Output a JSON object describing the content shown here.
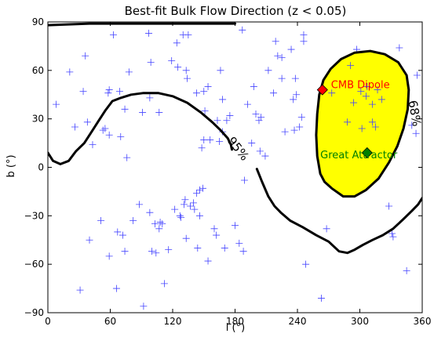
{
  "chart_data": {
    "type": "scatter",
    "title": "Best-fit Bulk Flow Direction (z < 0.05)",
    "xlabel": "l (°)",
    "ylabel": "b (°)",
    "xlim": [
      0,
      360
    ],
    "ylim": [
      -90,
      90
    ],
    "xticks": [
      0,
      60,
      120,
      180,
      240,
      300,
      360
    ],
    "yticks": [
      -90,
      -60,
      -30,
      0,
      30,
      60,
      90
    ],
    "grid": false,
    "scatter_color": "#4444ff",
    "contour_color": "#000000",
    "fill_color": "#ffff00",
    "points": [
      [
        8,
        39
      ],
      [
        21,
        59
      ],
      [
        26,
        25
      ],
      [
        31,
        -76
      ],
      [
        34,
        47
      ],
      [
        36,
        69
      ],
      [
        38,
        28
      ],
      [
        40,
        -45
      ],
      [
        43,
        14
      ],
      [
        51,
        -33
      ],
      [
        53,
        23
      ],
      [
        55,
        24
      ],
      [
        59,
        48
      ],
      [
        58,
        46
      ],
      [
        59,
        20
      ],
      [
        59,
        -55
      ],
      [
        63,
        82
      ],
      [
        66,
        -75
      ],
      [
        67,
        -40
      ],
      [
        69,
        47
      ],
      [
        70,
        19
      ],
      [
        72,
        -42
      ],
      [
        74,
        36
      ],
      [
        74,
        -52
      ],
      [
        76,
        6
      ],
      [
        78,
        59
      ],
      [
        82,
        -33
      ],
      [
        88,
        -23
      ],
      [
        91,
        34
      ],
      [
        92,
        -86
      ],
      [
        97,
        83
      ],
      [
        98,
        -28
      ],
      [
        98,
        43
      ],
      [
        99,
        65
      ],
      [
        100,
        -52
      ],
      [
        103,
        -35
      ],
      [
        104,
        -53
      ],
      [
        107,
        -38
      ],
      [
        108,
        -34
      ],
      [
        107,
        34
      ],
      [
        110,
        -35
      ],
      [
        112,
        -72
      ],
      [
        116,
        -51
      ],
      [
        119,
        66
      ],
      [
        122,
        -26
      ],
      [
        124,
        77
      ],
      [
        125,
        62
      ],
      [
        127,
        -30
      ],
      [
        128,
        -31
      ],
      [
        130,
        82
      ],
      [
        131,
        -23
      ],
      [
        132,
        -20
      ],
      [
        133,
        -44
      ],
      [
        133,
        60
      ],
      [
        134,
        55
      ],
      [
        135,
        82
      ],
      [
        137,
        -24
      ],
      [
        140,
        -22
      ],
      [
        141,
        -26
      ],
      [
        143,
        -16
      ],
      [
        144,
        -50
      ],
      [
        143,
        46
      ],
      [
        146,
        -14
      ],
      [
        146,
        -30
      ],
      [
        148,
        12
      ],
      [
        149,
        -13
      ],
      [
        150,
        17
      ],
      [
        150,
        47
      ],
      [
        151,
        35
      ],
      [
        154,
        50
      ],
      [
        154,
        -58
      ],
      [
        156,
        17
      ],
      [
        160,
        -38
      ],
      [
        162,
        -42
      ],
      [
        163,
        29
      ],
      [
        165,
        16
      ],
      [
        166,
        60
      ],
      [
        168,
        42
      ],
      [
        168,
        22
      ],
      [
        170,
        -50
      ],
      [
        172,
        29
      ],
      [
        175,
        32
      ],
      [
        180,
        -36
      ],
      [
        184,
        -47
      ],
      [
        187,
        85
      ],
      [
        188,
        -52
      ],
      [
        189,
        -8
      ],
      [
        192,
        39
      ],
      [
        196,
        15
      ],
      [
        198,
        50
      ],
      [
        200,
        33
      ],
      [
        203,
        29
      ],
      [
        205,
        31
      ],
      [
        204,
        10
      ],
      [
        209,
        7
      ],
      [
        212,
        60
      ],
      [
        217,
        46
      ],
      [
        219,
        78
      ],
      [
        221,
        69
      ],
      [
        225,
        55
      ],
      [
        225,
        68
      ],
      [
        228,
        22
      ],
      [
        234,
        73
      ],
      [
        236,
        42
      ],
      [
        237,
        23
      ],
      [
        238,
        55
      ],
      [
        239,
        45
      ],
      [
        242,
        25
      ],
      [
        244,
        31
      ],
      [
        246,
        78
      ],
      [
        246,
        82
      ],
      [
        248,
        -60
      ],
      [
        263,
        -81
      ],
      [
        268,
        -38
      ],
      [
        273,
        46
      ],
      [
        288,
        28
      ],
      [
        291,
        63
      ],
      [
        294,
        40
      ],
      [
        297,
        73
      ],
      [
        301,
        47
      ],
      [
        302,
        24
      ],
      [
        306,
        44
      ],
      [
        307,
        50
      ],
      [
        312,
        28
      ],
      [
        312,
        39
      ],
      [
        315,
        25
      ],
      [
        317,
        48
      ],
      [
        321,
        42
      ],
      [
        328,
        -24
      ],
      [
        331,
        -41
      ],
      [
        332,
        -43
      ],
      [
        338,
        74
      ],
      [
        345,
        -64
      ],
      [
        350,
        26
      ],
      [
        354,
        21
      ],
      [
        355,
        57
      ]
    ],
    "contours": [
      {
        "label": "95%",
        "curves": [
          [
            [
              0,
              9
            ],
            [
              5,
              4
            ],
            [
              12,
              2
            ],
            [
              20,
              4
            ],
            [
              27,
              10
            ],
            [
              35,
              15
            ],
            [
              42,
              22
            ],
            [
              48,
              28
            ],
            [
              55,
              35
            ],
            [
              62,
              41
            ],
            [
              70,
              43
            ],
            [
              80,
              45
            ],
            [
              92,
              46
            ],
            [
              106,
              46
            ],
            [
              120,
              44
            ],
            [
              134,
              40
            ],
            [
              147,
              34
            ],
            [
              158,
              28
            ],
            [
              166,
              23
            ],
            [
              173,
              18
            ],
            [
              176,
              14
            ],
            [
              177,
              11
            ]
          ],
          [
            [
              201,
              -1
            ],
            [
              206,
              -9
            ],
            [
              212,
              -18
            ],
            [
              218,
              -24
            ],
            [
              224,
              -28
            ],
            [
              233,
              -33
            ],
            [
              245,
              -37
            ],
            [
              258,
              -42
            ],
            [
              270,
              -46
            ],
            [
              280,
              -52
            ],
            [
              288,
              -53
            ],
            [
              295,
              -51
            ],
            [
              303,
              -48
            ],
            [
              312,
              -45
            ],
            [
              322,
              -42
            ],
            [
              332,
              -38
            ],
            [
              342,
              -32
            ],
            [
              350,
              -27
            ],
            [
              356,
              -23
            ],
            [
              360,
              -19
            ]
          ],
          [
            [
              0,
              88
            ],
            [
              40,
              89
            ],
            [
              90,
              89
            ],
            [
              140,
              89
            ],
            [
              180,
              89
            ]
          ]
        ]
      },
      {
        "label": "68%",
        "curves": [
          [
            [
              262,
              -4
            ],
            [
              259,
              7
            ],
            [
              258,
              20
            ],
            [
              259,
              33
            ],
            [
              261,
              45
            ],
            [
              265,
              54
            ],
            [
              272,
              61
            ],
            [
              282,
              67
            ],
            [
              295,
              71
            ],
            [
              310,
              72
            ],
            [
              324,
              70
            ],
            [
              337,
              65
            ],
            [
              345,
              57
            ],
            [
              347,
              48
            ],
            [
              346,
              36
            ],
            [
              342,
              24
            ],
            [
              336,
              13
            ],
            [
              328,
              3
            ],
            [
              318,
              -7
            ],
            [
              306,
              -14
            ],
            [
              295,
              -18
            ],
            [
              284,
              -18
            ],
            [
              273,
              -13
            ],
            [
              266,
              -9
            ],
            [
              262,
              -4
            ]
          ]
        ]
      }
    ],
    "markers": [
      {
        "name": "CMB Dipole",
        "l": 264,
        "b": 48,
        "color": "#ff0000",
        "label_color": "#ff0000"
      },
      {
        "name": "Great Attractor",
        "l": 307,
        "b": 9,
        "color": "#008000",
        "label_color": "#008000"
      }
    ]
  }
}
